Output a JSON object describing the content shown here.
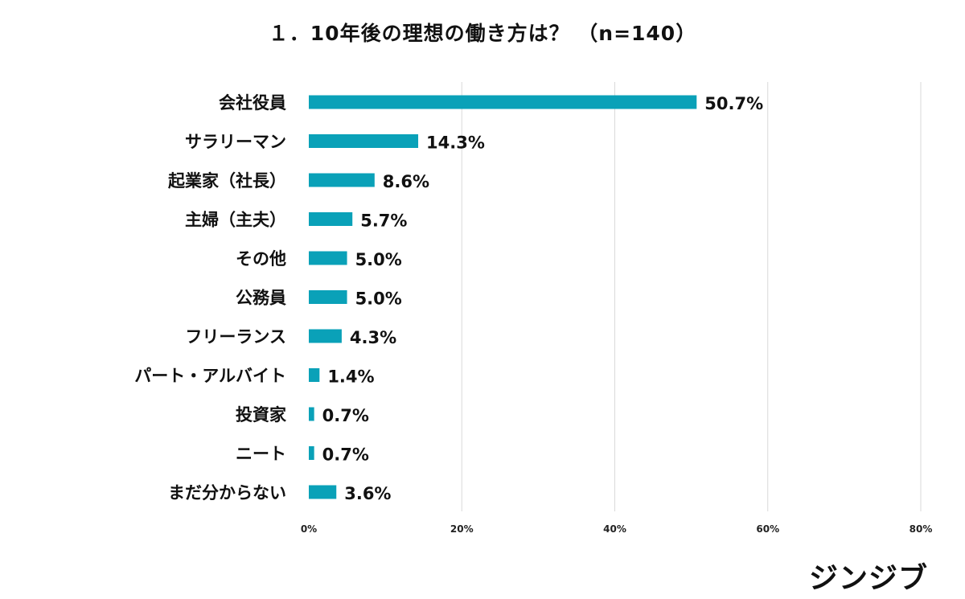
{
  "chart_data": {
    "type": "bar",
    "orientation": "horizontal",
    "title": "１．10年後の理想の働き方は？ （n=140）",
    "categories": [
      "会社役員",
      "サラリーマン",
      "起業家（社長）",
      "主婦（主夫）",
      "その他",
      "公務員",
      "フリーランス",
      "パート・アルバイト",
      "投資家",
      "ニート",
      "まだ分からない"
    ],
    "values": [
      50.7,
      14.3,
      8.6,
      5.7,
      5.0,
      5.0,
      4.3,
      1.4,
      0.7,
      0.7,
      3.6
    ],
    "value_labels": [
      "50.7%",
      "14.3%",
      "8.6%",
      "5.7%",
      "5.0%",
      "5.0%",
      "4.3%",
      "1.4%",
      "0.7%",
      "0.7%",
      "3.6%"
    ],
    "xticks": [
      0,
      20,
      40,
      60,
      80
    ],
    "xtick_labels": [
      "0%",
      "20%",
      "40%",
      "60%",
      "80%"
    ],
    "xlim": [
      0,
      80
    ],
    "xlabel": "",
    "ylabel": "",
    "grid": "vertical",
    "legend": "none",
    "bar_color": "#0aa1b8"
  },
  "brand": {
    "logo_text": "ジンジブ"
  }
}
